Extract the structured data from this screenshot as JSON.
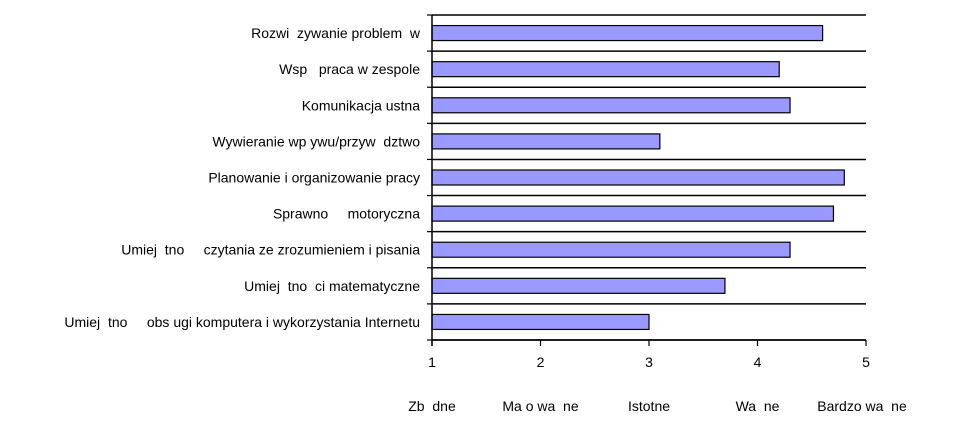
{
  "chart_data": {
    "type": "bar",
    "orientation": "horizontal",
    "categories": [
      "Rozwi  zywanie problem  w",
      "Wsp   praca w zespole",
      "Komunikacja ustna",
      "Wywieranie wp ywu/przyw  dztwo",
      "Planowanie i organizowanie pracy",
      "Sprawno     motoryczna",
      "Umiej  tno     czytania ze zrozumieniem i pisania",
      "Umiej  tno  ci matematyczne",
      "Umiej  tno     obs ugi komputera i wykorzystania Internetu"
    ],
    "values": [
      4.6,
      4.2,
      4.3,
      3.1,
      4.8,
      4.7,
      4.3,
      3.7,
      3.0
    ],
    "xlim": [
      1,
      5
    ],
    "xticks": [
      "1",
      "2",
      "3",
      "4",
      "5"
    ],
    "scale_labels": [
      "Zb  dne",
      "Ma o wa  ne",
      "Istotne",
      "Wa  ne",
      "Bardzo wa  ne"
    ],
    "bar_color": "#9999ff",
    "bar_edge_color": "#000000",
    "grid": "horizontal",
    "legend": "none"
  }
}
